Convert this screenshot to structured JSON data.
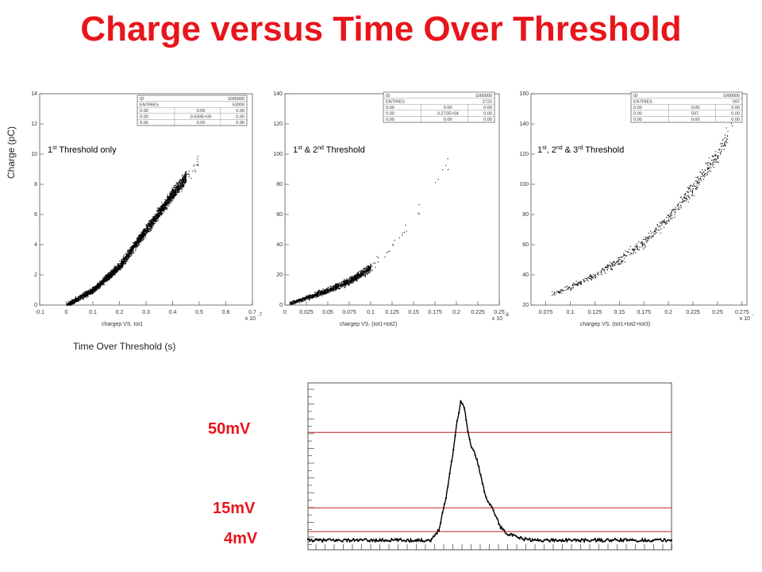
{
  "title": "Charge versus Time Over Threshold",
  "axis_labels": {
    "y": "Charge (pC)",
    "x": "Time Over Threshold (s)"
  },
  "colors": {
    "title": "#e8151b",
    "threshold_line": "#c0202a",
    "scatter": "#000000"
  },
  "chart_data": [
    {
      "type": "scatter",
      "label_text": "1st Threshold only",
      "label_base": "1",
      "label_sup": "st",
      "label_rest": " Threshold only",
      "xtitle": "chargep VS. tot1",
      "exponent": "x 10",
      "exponent_sup": "-7",
      "xlim": [
        -0.1,
        0.7
      ],
      "ylim": [
        0,
        14
      ],
      "xticks": [
        "-0.1",
        "0",
        "0.1",
        "0.2",
        "0.3",
        "0.4",
        "0.5",
        "0.6",
        "0.7"
      ],
      "yticks": [
        "0",
        "2",
        "4",
        "6",
        "8",
        "10",
        "12",
        "14"
      ],
      "xtick_values": [
        -0.1,
        0,
        0.1,
        0.2,
        0.3,
        0.4,
        0.5,
        0.6,
        0.7
      ],
      "ytick_values": [
        0,
        2,
        4,
        6,
        8,
        10,
        12,
        14
      ],
      "stats": [
        [
          "ID",
          "",
          "1000000"
        ],
        [
          "ENTRIES",
          "",
          "53000"
        ],
        [
          "0.00",
          "0.00",
          "0.00"
        ],
        [
          "0.00",
          "0.530E+05",
          "0.00"
        ],
        [
          "0.00",
          "0.00",
          "0.00"
        ]
      ],
      "trend": [
        [
          0.0,
          0.0
        ],
        [
          0.1,
          1.0
        ],
        [
          0.2,
          2.6
        ],
        [
          0.3,
          5.0
        ],
        [
          0.4,
          7.4
        ],
        [
          0.5,
          9.6
        ]
      ],
      "cluster_x": [
        0.0,
        0.45
      ],
      "point_count": 3200
    },
    {
      "type": "scatter",
      "label_text": "1st & 2nd Threshold",
      "label_base": "1",
      "label_sup": "st",
      "label_mid": " & 2",
      "label_sup2": "nd",
      "label_rest": " Threshold",
      "xtitle": "chargep VS. (tot1+tot2)",
      "exponent": "x 10",
      "exponent_sup": "-6",
      "xlim": [
        0,
        0.25
      ],
      "ylim": [
        0,
        140
      ],
      "xticks": [
        "0",
        "0.025",
        "0.05",
        "0.075",
        "0.1",
        "0.125",
        "0.15",
        "0.175",
        "0.2",
        "0.225",
        "0.25"
      ],
      "yticks": [
        "0",
        "20",
        "40",
        "60",
        "80",
        "100",
        "120",
        "140"
      ],
      "xtick_values": [
        0,
        0.025,
        0.05,
        0.075,
        0.1,
        0.125,
        0.15,
        0.175,
        0.2,
        0.225,
        0.25
      ],
      "ytick_values": [
        0,
        20,
        40,
        60,
        80,
        100,
        120,
        140
      ],
      "stats": [
        [
          "ID",
          "",
          "1000000"
        ],
        [
          "ENTRIES",
          "",
          "2723"
        ],
        [
          "0.00",
          "0.00",
          "0.00"
        ],
        [
          "0.00",
          "0.272E+04",
          "0.00"
        ],
        [
          "0.00",
          "0.00",
          "0.00"
        ]
      ],
      "trend": [
        [
          0.0,
          0.0
        ],
        [
          0.025,
          5.0
        ],
        [
          0.05,
          10.0
        ],
        [
          0.075,
          16.0
        ],
        [
          0.1,
          25.0
        ],
        [
          0.125,
          40.0
        ],
        [
          0.15,
          58.0
        ],
        [
          0.175,
          80.0
        ],
        [
          0.19,
          95.0
        ]
      ],
      "cluster_x": [
        0.005,
        0.1
      ],
      "point_count": 1300
    },
    {
      "type": "scatter",
      "label_text": "1st, 2nd & 3rd Threshold",
      "label_base": "1",
      "label_sup": "st",
      "label_mid": ", 2",
      "label_sup2": "nd",
      "label_mid2": " & 3",
      "label_sup3": "rd",
      "label_rest": " Threshold",
      "xtitle": "chargep VS. (tot1+tot2+tot3)",
      "exponent": "x 10",
      "exponent_sup": "-6",
      "xlim": [
        0.06,
        0.28
      ],
      "ylim": [
        20,
        160
      ],
      "xticks": [
        "0.075",
        "0.1",
        "0.125",
        "0.15",
        "0.175",
        "0.2",
        "0.225",
        "0.25",
        "0.275"
      ],
      "yticks": [
        "20",
        "40",
        "60",
        "80",
        "100",
        "120",
        "140",
        "160"
      ],
      "xtick_values": [
        0.075,
        0.1,
        0.125,
        0.15,
        0.175,
        0.2,
        0.225,
        0.25,
        0.275
      ],
      "ytick_values": [
        20,
        40,
        60,
        80,
        100,
        120,
        140,
        160
      ],
      "stats": [
        [
          "ID",
          "",
          "1000000"
        ],
        [
          "ENTRIES",
          "",
          "597"
        ],
        [
          "0.00",
          "0.00",
          "0.00"
        ],
        [
          "0.00",
          "597.",
          "0.00"
        ],
        [
          "0.00",
          "0.00",
          "0.00"
        ]
      ],
      "trend": [
        [
          0.075,
          26.0
        ],
        [
          0.1,
          32.0
        ],
        [
          0.125,
          40.0
        ],
        [
          0.15,
          50.0
        ],
        [
          0.175,
          62.0
        ],
        [
          0.2,
          78.0
        ],
        [
          0.225,
          98.0
        ],
        [
          0.25,
          120.0
        ],
        [
          0.265,
          140.0
        ]
      ],
      "cluster_x": [
        0.08,
        0.26
      ],
      "point_count": 600
    },
    {
      "type": "line",
      "name": "waveform",
      "thresholds": [
        {
          "label": "50mV",
          "level": 50
        },
        {
          "label": "15mV",
          "level": 15
        },
        {
          "label": "4mV",
          "level": 4
        }
      ],
      "waveform": [
        [
          0,
          0
        ],
        [
          34,
          0
        ],
        [
          36,
          5
        ],
        [
          38,
          20
        ],
        [
          40,
          42
        ],
        [
          41,
          55
        ],
        [
          42,
          64
        ],
        [
          43,
          62
        ],
        [
          44,
          50
        ],
        [
          45,
          43
        ],
        [
          46,
          40
        ],
        [
          47,
          34
        ],
        [
          48,
          26
        ],
        [
          49,
          20
        ],
        [
          50,
          17
        ],
        [
          51,
          14
        ],
        [
          52,
          10
        ],
        [
          53,
          6
        ],
        [
          55,
          3
        ],
        [
          58,
          1
        ],
        [
          62,
          0
        ],
        [
          100,
          0
        ]
      ]
    }
  ]
}
